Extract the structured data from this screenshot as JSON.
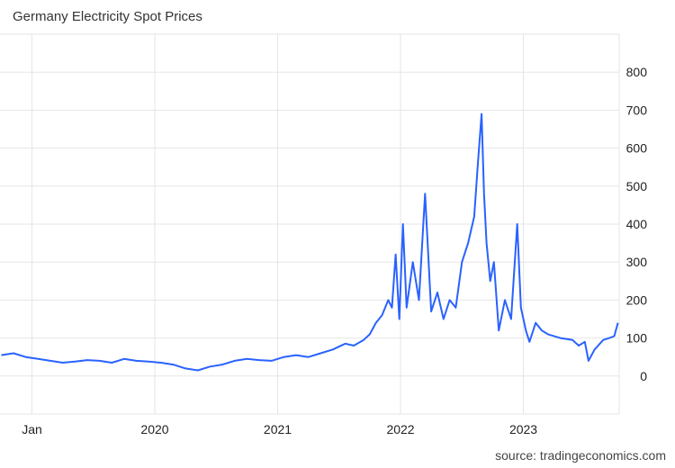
{
  "title": "Germany Electricity Spot Prices",
  "source": "source: tradingeconomics.com",
  "colors": {
    "line": "#2962ff",
    "grid": "#e6e6e6",
    "background": "#ffffff"
  },
  "chart_data": {
    "type": "line",
    "title": "Germany Electricity Spot Prices",
    "xlabel": "",
    "ylabel": "",
    "y_ticks": [
      0,
      100,
      200,
      300,
      400,
      500,
      600,
      700,
      800
    ],
    "ylim": [
      -100,
      900
    ],
    "y_axis_position": "right",
    "x_ticks": [
      {
        "label": "Jan",
        "x": 2019.0
      },
      {
        "label": "2020",
        "x": 2020.0
      },
      {
        "label": "2021",
        "x": 2021.0
      },
      {
        "label": "2022",
        "x": 2022.0
      },
      {
        "label": "2023",
        "x": 2023.0
      }
    ],
    "xlim": [
      2018.74,
      2023.78
    ],
    "grid": true,
    "legend": "none",
    "series": [
      {
        "x": [
          2018.75,
          2018.85,
          2018.95,
          2019.05,
          2019.15,
          2019.25,
          2019.35,
          2019.45,
          2019.55,
          2019.65,
          2019.75,
          2019.85,
          2019.95,
          2020.05,
          2020.15,
          2020.25,
          2020.35,
          2020.45,
          2020.55,
          2020.65,
          2020.75,
          2020.85,
          2020.95,
          2021.05,
          2021.15,
          2021.25,
          2021.35,
          2021.45,
          2021.55,
          2021.62,
          2021.7,
          2021.75,
          2021.8,
          2021.85,
          2021.9,
          2021.93,
          2021.96,
          2021.99,
          2022.02,
          2022.05,
          2022.1,
          2022.15,
          2022.2,
          2022.25,
          2022.3,
          2022.35,
          2022.4,
          2022.45,
          2022.5,
          2022.55,
          2022.6,
          2022.63,
          2022.66,
          2022.68,
          2022.7,
          2022.73,
          2022.76,
          2022.8,
          2022.85,
          2022.9,
          2022.95,
          2022.98,
          2023.02,
          2023.05,
          2023.1,
          2023.15,
          2023.2,
          2023.3,
          2023.4,
          2023.45,
          2023.5,
          2023.53,
          2023.58,
          2023.65,
          2023.7,
          2023.74,
          2023.77
        ],
        "y": [
          55,
          60,
          50,
          45,
          40,
          35,
          38,
          42,
          40,
          35,
          45,
          40,
          38,
          35,
          30,
          20,
          15,
          25,
          30,
          40,
          45,
          42,
          40,
          50,
          55,
          50,
          60,
          70,
          85,
          80,
          95,
          110,
          140,
          160,
          200,
          180,
          320,
          150,
          400,
          180,
          300,
          200,
          480,
          170,
          220,
          150,
          200,
          180,
          300,
          350,
          420,
          560,
          690,
          480,
          350,
          250,
          300,
          120,
          200,
          150,
          400,
          180,
          120,
          90,
          140,
          120,
          110,
          100,
          95,
          80,
          90,
          40,
          70,
          95,
          100,
          105,
          140
        ]
      }
    ]
  }
}
